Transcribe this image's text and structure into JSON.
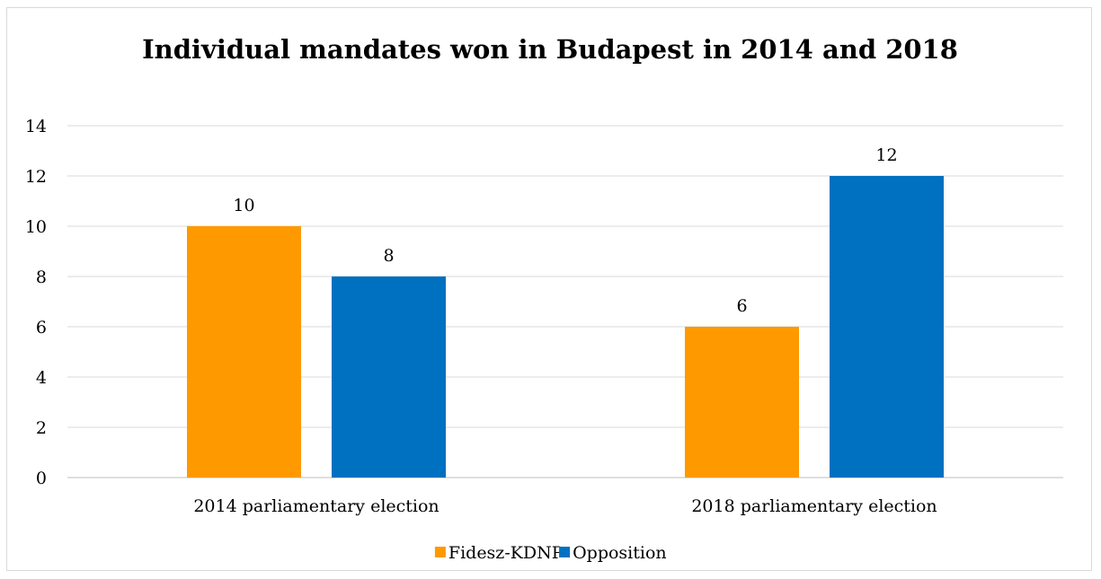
{
  "chart_data": {
    "type": "bar",
    "title": "Individual mandates won in Budapest in 2014 and 2018",
    "categories": [
      "2014 parliamentary election",
      "2018 parliamentary election"
    ],
    "series": [
      {
        "name": "Fidesz-KDNP",
        "values": [
          10,
          6
        ],
        "color": "#FF9900"
      },
      {
        "name": "Opposition",
        "values": [
          8,
          12
        ],
        "color": "#0070C0"
      }
    ],
    "ylim": [
      0,
      14
    ],
    "yticks": [
      0,
      2,
      4,
      6,
      8,
      10,
      12,
      14
    ],
    "grid": true,
    "data_labels": true,
    "legend_position": "bottom"
  }
}
